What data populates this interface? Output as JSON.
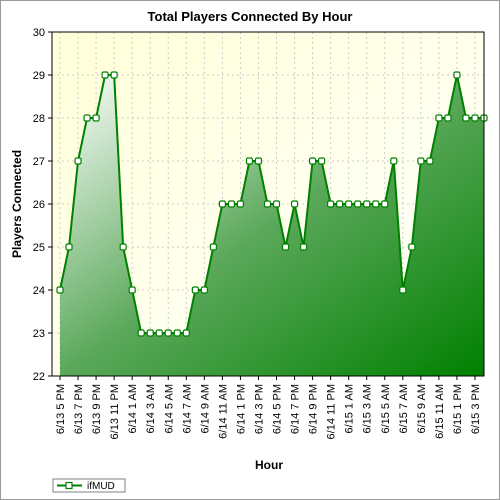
{
  "chart_data": {
    "type": "area",
    "title": "Total Players Connected By Hour",
    "xlabel": "Hour",
    "ylabel": "Players Connected",
    "ylim": [
      22,
      30
    ],
    "yticks": [
      22,
      23,
      24,
      25,
      26,
      27,
      28,
      29,
      30
    ],
    "grid": true,
    "legend_position": "bottom-left",
    "x": [
      "6/13 5 PM",
      "6/13 6 PM",
      "6/13 7 PM",
      "6/13 8 PM",
      "6/13 9 PM",
      "6/13 10 PM",
      "6/13 11 PM",
      "6/14 12 AM",
      "6/14 1 AM",
      "6/14 2 AM",
      "6/14 3 AM",
      "6/14 4 AM",
      "6/14 5 AM",
      "6/14 6 AM",
      "6/14 7 AM",
      "6/14 8 AM",
      "6/14 9 AM",
      "6/14 10 AM",
      "6/14 11 AM",
      "6/14 12 PM",
      "6/14 1 PM",
      "6/14 2 PM",
      "6/14 3 PM",
      "6/14 4 PM",
      "6/14 5 PM",
      "6/14 6 PM",
      "6/14 7 PM",
      "6/14 8 PM",
      "6/14 9 PM",
      "6/14 10 PM",
      "6/14 11 PM",
      "6/15 12 AM",
      "6/15 1 AM",
      "6/15 2 AM",
      "6/15 3 AM",
      "6/15 4 AM",
      "6/15 5 AM",
      "6/15 6 AM",
      "6/15 7 AM",
      "6/15 8 AM",
      "6/15 9 AM",
      "6/15 10 AM",
      "6/15 11 AM",
      "6/15 12 PM",
      "6/15 1 PM",
      "6/15 2 PM",
      "6/15 3 PM",
      "6/15 4 PM"
    ],
    "x_tick_labels": [
      "6/13 5 PM",
      "6/13 7 PM",
      "6/13 9 PM",
      "6/13 11 PM",
      "6/14 1 AM",
      "6/14 3 AM",
      "6/14 5 AM",
      "6/14 7 AM",
      "6/14 9 AM",
      "6/14 11 AM",
      "6/14 1 PM",
      "6/14 3 PM",
      "6/14 5 PM",
      "6/14 7 PM",
      "6/14 9 PM",
      "6/14 11 PM",
      "6/15 1 AM",
      "6/15 3 AM",
      "6/15 5 AM",
      "6/15 7 AM",
      "6/15 9 AM",
      "6/15 11 AM",
      "6/15 1 PM",
      "6/15 3 PM"
    ],
    "series": [
      {
        "name": "ifMUD",
        "color": "#008000",
        "values": [
          24,
          25,
          27,
          28,
          28,
          29,
          29,
          25,
          24,
          23,
          23,
          23,
          23,
          23,
          23,
          24,
          24,
          25,
          26,
          26,
          26,
          27,
          27,
          26,
          26,
          25,
          26,
          25,
          27,
          27,
          26,
          26,
          26,
          26,
          26,
          26,
          26,
          27,
          24,
          25,
          27,
          27,
          28,
          28,
          29,
          28,
          28,
          28
        ]
      }
    ]
  }
}
